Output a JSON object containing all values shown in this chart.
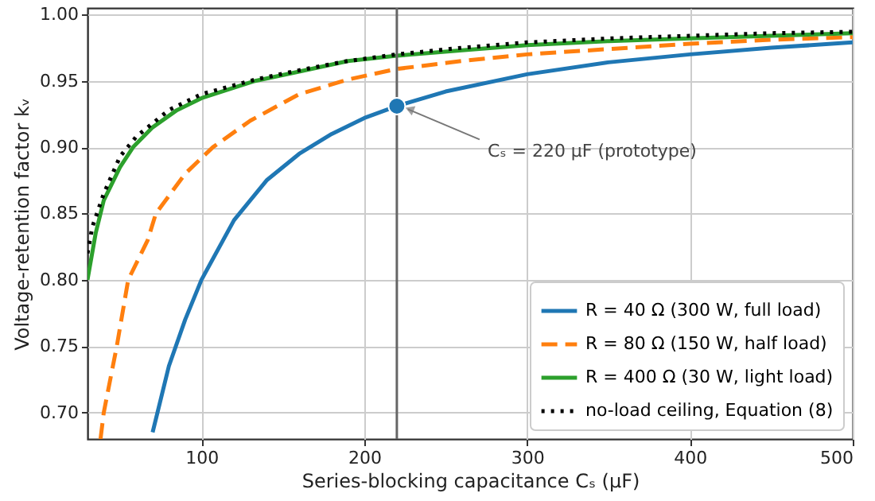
{
  "chart_data": {
    "type": "line",
    "xlabel": "Series-blocking capacitance Cₛ (μF)",
    "ylabel": "Voltage-retention factor kᵥ",
    "xlim": [
      30,
      500
    ],
    "xticks": [
      100,
      200,
      300,
      400,
      500
    ],
    "ylim": [
      0.68,
      1.005
    ],
    "yticks": [
      {
        "value": 0.7,
        "label": "0.70"
      },
      {
        "value": 0.75,
        "label": "0.75"
      },
      {
        "value": 0.8,
        "label": "0.80"
      },
      {
        "value": 0.85,
        "label": "0.85"
      },
      {
        "value": 0.9,
        "label": "0.90"
      },
      {
        "value": 0.95,
        "label": "0.95"
      },
      {
        "value": 1,
        "label": "1.00"
      }
    ],
    "grid": true,
    "legend": "bottom right",
    "series": [
      {
        "name": "R = 40 Ω (300 W, full load)",
        "color": "#1f77b4",
        "line_style": "solid",
        "x": [
          70,
          80,
          90,
          100,
          120,
          140,
          160,
          180,
          200,
          220,
          250,
          300,
          350,
          400,
          450,
          500
        ],
        "values": [
          0.685,
          0.735,
          0.77,
          0.8,
          0.845,
          0.875,
          0.895,
          0.91,
          0.922,
          0.931,
          0.942,
          0.955,
          0.964,
          0.97,
          0.975,
          0.979
        ]
      },
      {
        "name": "R = 80 Ω (150 W, half load)",
        "color": "#ff7f0e",
        "line_style": "dashed",
        "x": [
          38,
          40,
          48,
          55,
          67,
          72,
          90,
          107,
          130,
          160,
          190,
          220,
          260,
          300,
          350,
          400,
          450,
          500
        ],
        "values": [
          0.68,
          0.7,
          0.75,
          0.8,
          0.83,
          0.85,
          0.88,
          0.9,
          0.92,
          0.94,
          0.951,
          0.959,
          0.965,
          0.97,
          0.974,
          0.978,
          0.981,
          0.983
        ]
      },
      {
        "name": "R = 400 Ω (30 W, light load)",
        "color": "#2ca02c",
        "line_style": "solid",
        "x": [
          30,
          35,
          40,
          50,
          58,
          70,
          85,
          100,
          133,
          160,
          190,
          220,
          260,
          300,
          350,
          400,
          450,
          500
        ],
        "values": [
          0.8,
          0.835,
          0.86,
          0.885,
          0.9,
          0.915,
          0.928,
          0.937,
          0.95,
          0.957,
          0.965,
          0.969,
          0.973,
          0.977,
          0.98,
          0.982,
          0.984,
          0.986
        ]
      },
      {
        "name": "no-load ceiling, Equation (8)",
        "color": "#000000",
        "line_style": "dotted",
        "x": [
          30,
          33,
          40,
          50,
          60,
          80,
          100,
          133,
          160,
          190,
          220,
          260,
          300,
          350,
          400,
          450,
          500
        ],
        "values": [
          0.82,
          0.84,
          0.865,
          0.893,
          0.908,
          0.928,
          0.94,
          0.951,
          0.958,
          0.965,
          0.97,
          0.975,
          0.979,
          0.982,
          0.984,
          0.986,
          0.987
        ]
      },
      {
        "type": "scatter",
        "marker": "circle",
        "color": "#1f77b4",
        "x": [
          220
        ],
        "values": [
          0.931
        ]
      }
    ],
    "ref_lines": [
      {
        "axis": "x",
        "value": 220,
        "color": "#666666"
      }
    ],
    "annotations": [
      {
        "text": "Cₛ = 220 μF (prototype)",
        "x": 220,
        "y": 0.931
      }
    ]
  }
}
